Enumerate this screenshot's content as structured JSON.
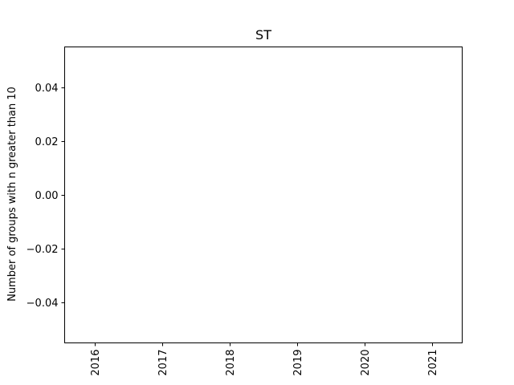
{
  "chart_data": {
    "type": "line",
    "title": "ST",
    "xlabel": "",
    "ylabel": "Number of groups with n greater than 10",
    "x_ticks": [
      "2016",
      "2017",
      "2018",
      "2019",
      "2020",
      "2021"
    ],
    "y_ticks": [
      "0.04",
      "0.02",
      "0.00",
      "−0.02",
      "−0.04"
    ],
    "y_tick_values": [
      0.04,
      0.02,
      0.0,
      -0.02,
      -0.04
    ],
    "ylim": [
      -0.055,
      0.055
    ],
    "series": [],
    "grid": false,
    "x_tick_rotation": "vertical"
  }
}
